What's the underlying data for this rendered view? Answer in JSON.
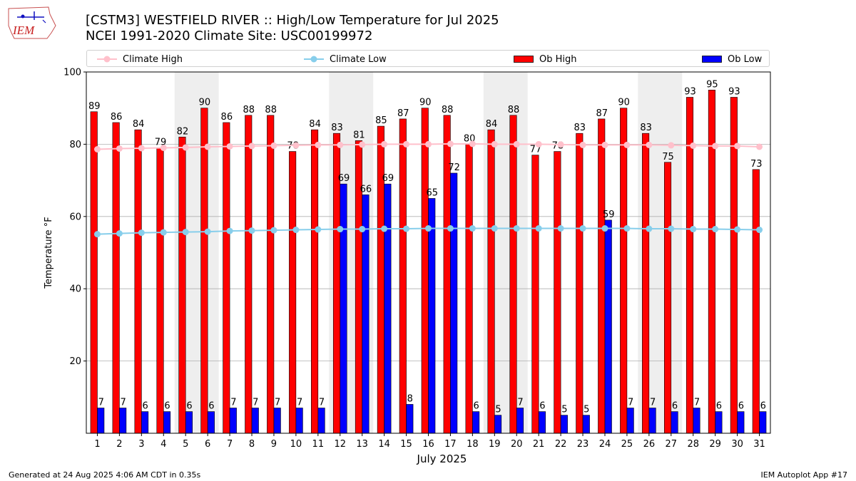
{
  "header": {
    "title_line1": "[CSTM3] WESTFIELD RIVER :: High/Low Temperature for Jul 2025",
    "title_line2": "NCEI 1991-2020 Climate Site: USC00199972",
    "logo_text": "IEM"
  },
  "footer": {
    "generated": "Generated at 24 Aug 2025 4:06 AM CDT in 0.35s",
    "app": "IEM Autoplot App #17"
  },
  "colors": {
    "ob_high": "#ff0000",
    "ob_low": "#0000ff",
    "climate_high": "#ffc0cb",
    "climate_low": "#87ceeb",
    "weekend_shade": "#eeeeee",
    "grid": "#b0b0b0"
  },
  "chart_data": {
    "type": "bar",
    "title": "[CSTM3] WESTFIELD RIVER :: High/Low Temperature for Jul 2025",
    "subtitle": "NCEI 1991-2020 Climate Site: USC00199972",
    "xlabel": "July 2025",
    "ylabel": "Temperature °F",
    "ylim": [
      0,
      100
    ],
    "yticks": [
      20,
      40,
      60,
      80,
      100
    ],
    "grid": true,
    "legend_position": "top",
    "categories": [
      "1",
      "2",
      "3",
      "4",
      "5",
      "6",
      "7",
      "8",
      "9",
      "10",
      "11",
      "12",
      "13",
      "14",
      "15",
      "16",
      "17",
      "18",
      "19",
      "20",
      "21",
      "22",
      "23",
      "24",
      "25",
      "26",
      "27",
      "28",
      "29",
      "30",
      "31"
    ],
    "shaded_weekends": [
      [
        5,
        6
      ],
      [
        12,
        13
      ],
      [
        19,
        20
      ],
      [
        26,
        27
      ]
    ],
    "series": [
      {
        "name": "Ob High",
        "kind": "bar",
        "values": [
          89,
          86,
          84,
          79,
          82,
          90,
          86,
          88,
          88,
          78,
          84,
          83,
          81,
          85,
          87,
          90,
          88,
          80,
          84,
          88,
          77,
          78,
          83,
          87,
          90,
          83,
          75,
          93,
          95,
          93,
          73
        ]
      },
      {
        "name": "Ob Low",
        "kind": "bar",
        "values": [
          7,
          7,
          6,
          6,
          6,
          6,
          7,
          7,
          7,
          7,
          7,
          69,
          66,
          69,
          8,
          65,
          72,
          6,
          5,
          7,
          6,
          5,
          5,
          59,
          7,
          7,
          6,
          7,
          6,
          6,
          6
        ]
      },
      {
        "name": "Climate High",
        "kind": "line",
        "values": [
          78.6,
          78.8,
          78.9,
          79.0,
          79.1,
          79.3,
          79.4,
          79.5,
          79.6,
          79.7,
          79.8,
          79.8,
          79.9,
          80.0,
          80.0,
          80.0,
          80.1,
          80.1,
          80.0,
          80.0,
          80.0,
          79.9,
          79.8,
          79.8,
          79.8,
          79.8,
          79.7,
          79.6,
          79.5,
          79.5,
          79.3
        ]
      },
      {
        "name": "Climate Low",
        "kind": "line",
        "values": [
          55.1,
          55.3,
          55.5,
          55.6,
          55.7,
          55.8,
          56.0,
          56.1,
          56.2,
          56.3,
          56.4,
          56.5,
          56.5,
          56.6,
          56.6,
          56.7,
          56.7,
          56.7,
          56.7,
          56.7,
          56.7,
          56.7,
          56.7,
          56.7,
          56.7,
          56.6,
          56.6,
          56.5,
          56.5,
          56.4,
          56.3
        ]
      }
    ]
  }
}
